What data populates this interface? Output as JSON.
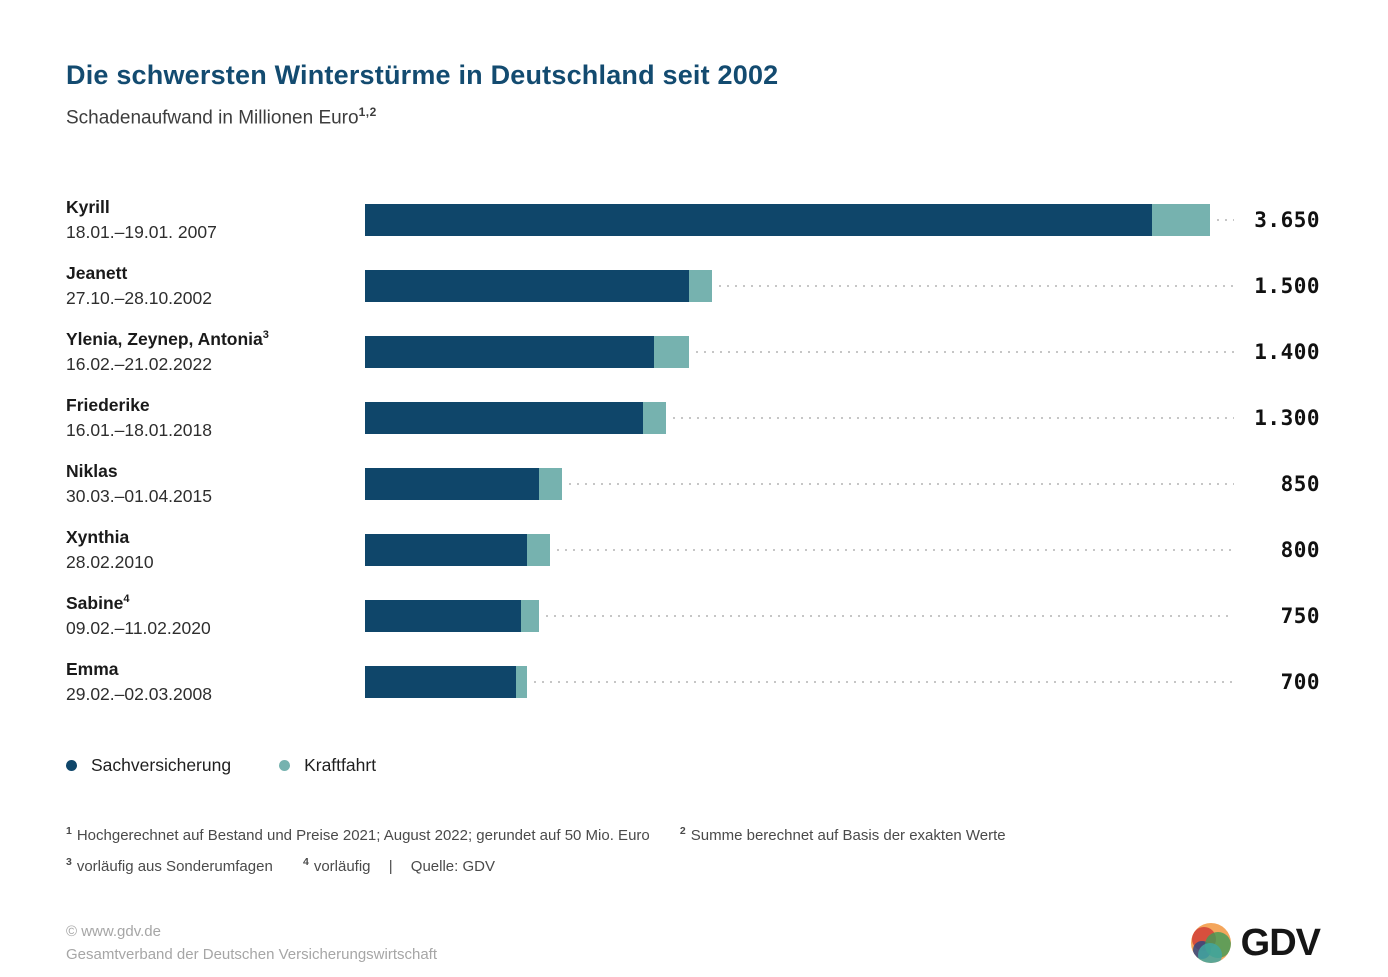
{
  "title": "Die schwersten Winterstürme in Deutschland seit 2002",
  "subtitle": "Schadenaufwand in Millionen Euro",
  "subtitle_sup": "1,2",
  "colors": {
    "sachversicherung": "#0F466A",
    "kraftfahrt": "#76B2AF",
    "title": "#134B70",
    "leader_dots": "#c6c6c6"
  },
  "chart_data": {
    "type": "bar",
    "orientation": "horizontal",
    "title": "Die schwersten Winterstürme in Deutschland seit 2002",
    "unit": "Millionen Euro",
    "xlim": [
      0,
      3650
    ],
    "grid": false,
    "legend_position": "bottom",
    "series_names": [
      "Sachversicherung",
      "Kraftfahrt"
    ],
    "rows": [
      {
        "name": "Kyrill",
        "sup": "",
        "date": "18.01.–19.01. 2007",
        "total": 3650,
        "total_label": "3.650",
        "sachversicherung": 3400,
        "kraftfahrt": 250
      },
      {
        "name": "Jeanett",
        "sup": "",
        "date": "27.10.–28.10.2002",
        "total": 1500,
        "total_label": "1.500",
        "sachversicherung": 1400,
        "kraftfahrt": 100
      },
      {
        "name": "Ylenia, Zeynep, Antonia",
        "sup": "3",
        "date": "16.02.–21.02.2022",
        "total": 1400,
        "total_label": "1.400",
        "sachversicherung": 1250,
        "kraftfahrt": 150
      },
      {
        "name": "Friederike",
        "sup": "",
        "date": "16.01.–18.01.2018",
        "total": 1300,
        "total_label": "1.300",
        "sachversicherung": 1200,
        "kraftfahrt": 100
      },
      {
        "name": "Niklas",
        "sup": "",
        "date": "30.03.–01.04.2015",
        "total": 850,
        "total_label": "850",
        "sachversicherung": 750,
        "kraftfahrt": 100
      },
      {
        "name": "Xynthia",
        "sup": "",
        "date": "28.02.2010",
        "total": 800,
        "total_label": "800",
        "sachversicherung": 700,
        "kraftfahrt": 100
      },
      {
        "name": "Sabine",
        "sup": "4",
        "date": "09.02.–11.02.2020",
        "total": 750,
        "total_label": "750",
        "sachversicherung": 675,
        "kraftfahrt": 75
      },
      {
        "name": "Emma",
        "sup": "",
        "date": "29.02.–02.03.2008",
        "total": 700,
        "total_label": "700",
        "sachversicherung": 650,
        "kraftfahrt": 50
      }
    ]
  },
  "legend": [
    {
      "label": "Sachversicherung",
      "color": "#0F466A"
    },
    {
      "label": "Kraftfahrt",
      "color": "#76B2AF"
    }
  ],
  "footnotes": {
    "line1": [
      {
        "sup": "1",
        "text": "Hochgerechnet auf Bestand und Preise 2021; August 2022; gerundet auf 50 Mio. Euro"
      },
      {
        "sup": "2",
        "text": "Summe berechnet auf Basis der exakten Werte"
      }
    ],
    "line2": [
      {
        "sup": "3",
        "text": "vorläufig aus Sonderumfagen"
      },
      {
        "sup": "4",
        "text": "vorläufig"
      }
    ],
    "separator": "|",
    "source": "Quelle: GDV"
  },
  "footer": {
    "copyright": "© www.gdv.de",
    "organization": "Gesamtverband der Deutschen Versicherungswirtschaft",
    "logo_text": "GDV"
  }
}
